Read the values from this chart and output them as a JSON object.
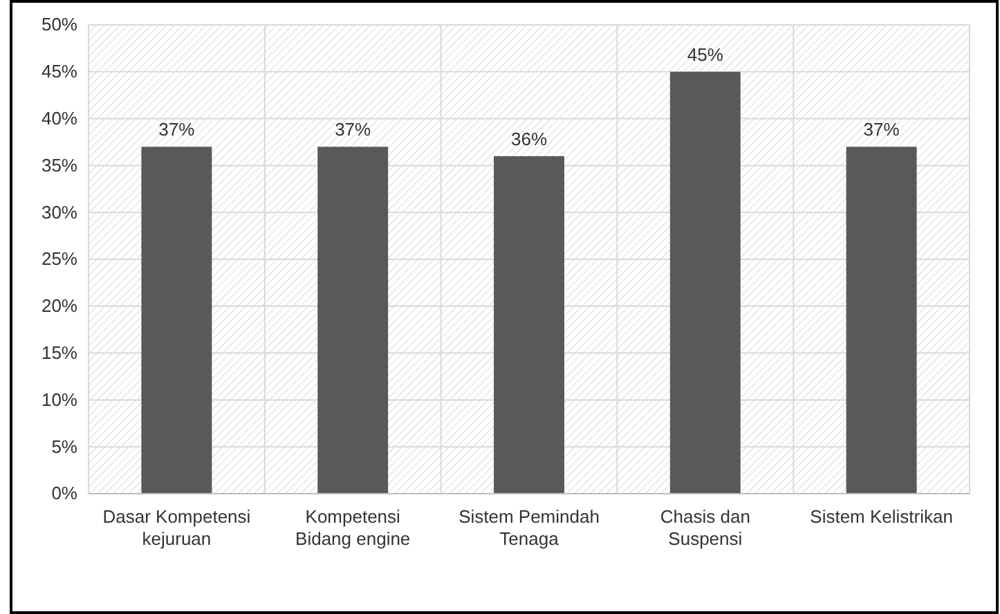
{
  "chart_data": {
    "type": "bar",
    "categories": [
      "Dasar Kompetensi kejuruan",
      "Kompetensi Bidang engine",
      "Sistem Pemindah Tenaga",
      "Chasis dan Suspensi",
      "Sistem Kelistrikan"
    ],
    "values": [
      37,
      37,
      36,
      45,
      37
    ],
    "value_labels": [
      "37%",
      "37%",
      "36%",
      "45%",
      "37%"
    ],
    "color": "#595959",
    "ylim": [
      0,
      50
    ],
    "yticks": [
      {
        "value": 0,
        "label": "0%"
      },
      {
        "value": 5,
        "label": "5%"
      },
      {
        "value": 10,
        "label": "10%"
      },
      {
        "value": 15,
        "label": "15%"
      },
      {
        "value": 20,
        "label": "20%"
      },
      {
        "value": 25,
        "label": "25%"
      },
      {
        "value": 30,
        "label": "30%"
      },
      {
        "value": 35,
        "label": "35%"
      },
      {
        "value": 40,
        "label": "40%"
      },
      {
        "value": 45,
        "label": "45%"
      },
      {
        "value": 50,
        "label": "50%"
      }
    ],
    "grid": true
  }
}
